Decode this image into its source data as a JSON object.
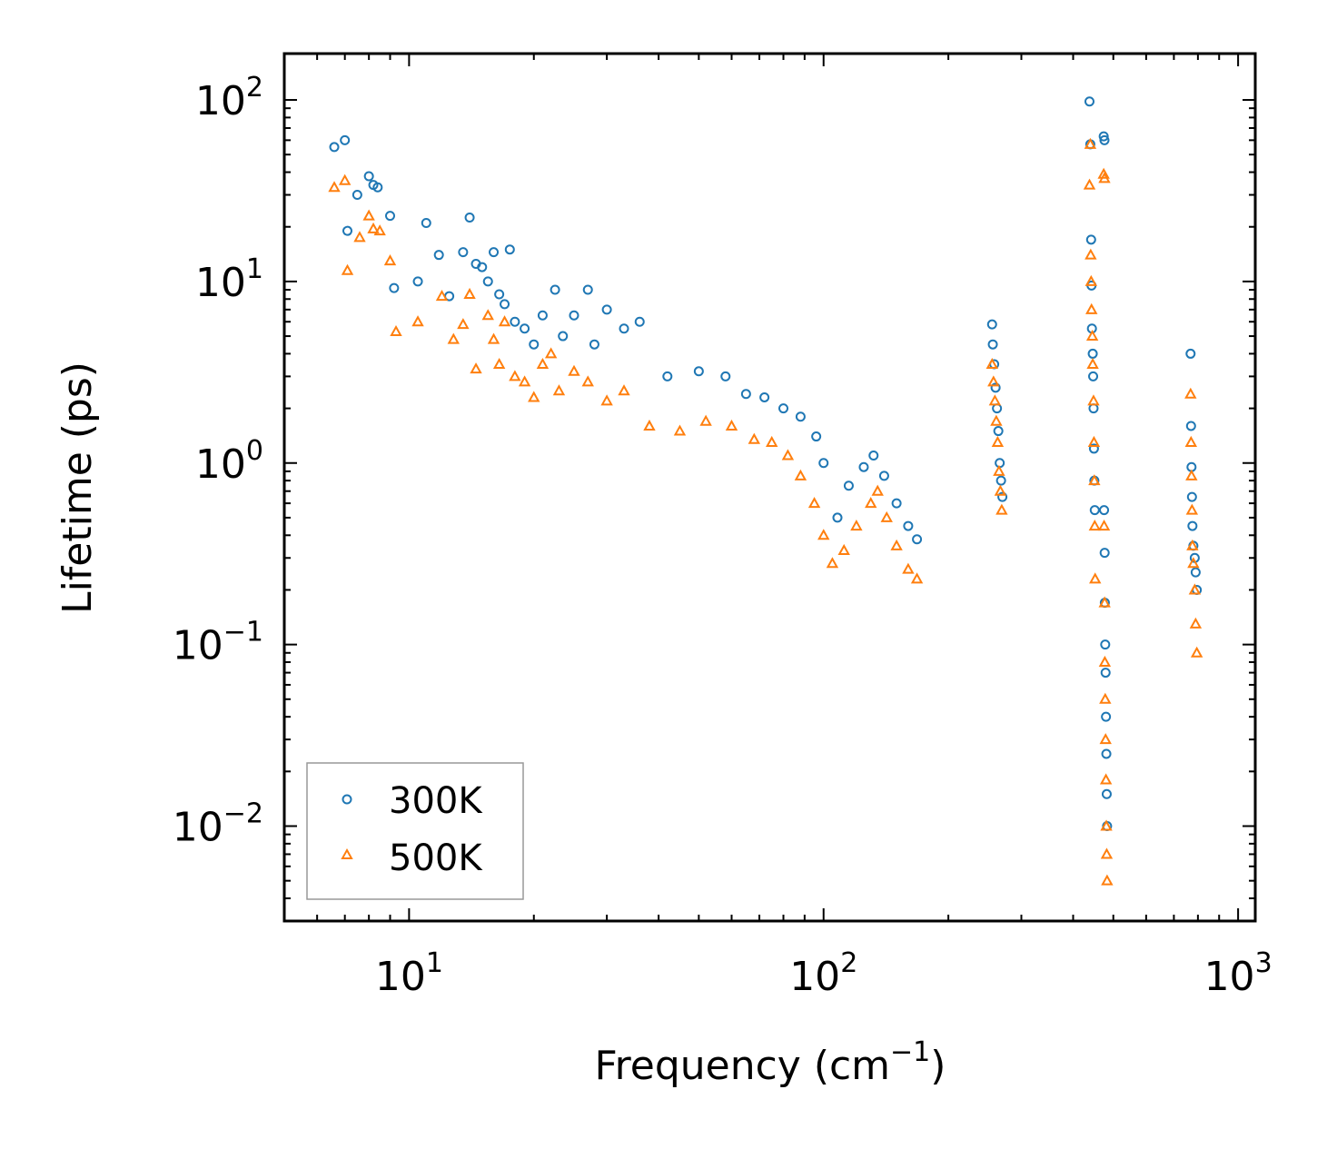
{
  "chart_data": {
    "type": "scatter",
    "title": "",
    "xlabel": "Frequency (cm",
    "xlabel_sup": "−1",
    "xlabel_close": ")",
    "ylabel": "Lifetime (ps)",
    "xscale": "log",
    "yscale": "log",
    "xlim": [
      5,
      1100
    ],
    "ylim": [
      0.003,
      180
    ],
    "x_ticks": [
      {
        "value": 10,
        "base": "10",
        "exp": "1"
      },
      {
        "value": 100,
        "base": "10",
        "exp": "2"
      },
      {
        "value": 1000,
        "base": "10",
        "exp": "3"
      }
    ],
    "y_ticks": [
      {
        "value": 100,
        "base": "10",
        "exp": "2"
      },
      {
        "value": 10,
        "base": "10",
        "exp": "1"
      },
      {
        "value": 1,
        "base": "10",
        "exp": "0"
      },
      {
        "value": 0.1,
        "base": "10",
        "exp": "−1"
      },
      {
        "value": 0.01,
        "base": "10",
        "exp": "−2"
      }
    ],
    "legend_position": "lower-left",
    "series": [
      {
        "name": "300K",
        "marker": "circle",
        "color": "#1f77b4",
        "points": [
          [
            6.6,
            55
          ],
          [
            7.0,
            60
          ],
          [
            7.1,
            19
          ],
          [
            7.5,
            30
          ],
          [
            8.0,
            38
          ],
          [
            8.2,
            34
          ],
          [
            8.4,
            33
          ],
          [
            9.0,
            23
          ],
          [
            9.2,
            9.2
          ],
          [
            10.5,
            10
          ],
          [
            11.0,
            21
          ],
          [
            11.8,
            14
          ],
          [
            12.5,
            8.3
          ],
          [
            13.5,
            14.5
          ],
          [
            14.0,
            22.5
          ],
          [
            14.5,
            12.5
          ],
          [
            15.0,
            12
          ],
          [
            15.5,
            10
          ],
          [
            16.0,
            14.5
          ],
          [
            16.5,
            8.5
          ],
          [
            17.0,
            7.5
          ],
          [
            17.5,
            15
          ],
          [
            18.0,
            6
          ],
          [
            19.0,
            5.5
          ],
          [
            20.0,
            4.5
          ],
          [
            21.0,
            6.5
          ],
          [
            22.5,
            9
          ],
          [
            23.5,
            5
          ],
          [
            25.0,
            6.5
          ],
          [
            27.0,
            9
          ],
          [
            28.0,
            4.5
          ],
          [
            30.0,
            7
          ],
          [
            33.0,
            5.5
          ],
          [
            36.0,
            6
          ],
          [
            42.0,
            3
          ],
          [
            50.0,
            3.2
          ],
          [
            58.0,
            3
          ],
          [
            65.0,
            2.4
          ],
          [
            72.0,
            2.3
          ],
          [
            80.0,
            2.0
          ],
          [
            88.0,
            1.8
          ],
          [
            96.0,
            1.4
          ],
          [
            100.0,
            1.0
          ],
          [
            108.0,
            0.5
          ],
          [
            115.0,
            0.75
          ],
          [
            125.0,
            0.95
          ],
          [
            132.0,
            1.1
          ],
          [
            140.0,
            0.85
          ],
          [
            150.0,
            0.6
          ],
          [
            160.0,
            0.45
          ],
          [
            168.0,
            0.38
          ],
          [
            255.0,
            5.8
          ],
          [
            256.0,
            4.5
          ],
          [
            258.0,
            3.5
          ],
          [
            260.0,
            2.6
          ],
          [
            262.0,
            2.0
          ],
          [
            264.0,
            1.5
          ],
          [
            266.0,
            1.0
          ],
          [
            268.0,
            0.8
          ],
          [
            270.0,
            0.65
          ],
          [
            438.0,
            98
          ],
          [
            440.0,
            57
          ],
          [
            442.0,
            17
          ],
          [
            443.0,
            9.5
          ],
          [
            444.0,
            5.5
          ],
          [
            446.0,
            4
          ],
          [
            447.0,
            3
          ],
          [
            448.0,
            2
          ],
          [
            449.0,
            1.2
          ],
          [
            450.0,
            0.8
          ],
          [
            451.0,
            0.55
          ],
          [
            474.0,
            63
          ],
          [
            476.0,
            60
          ],
          [
            475.0,
            0.55
          ],
          [
            476.5,
            0.32
          ],
          [
            477.0,
            0.17
          ],
          [
            478.0,
            0.1
          ],
          [
            479.0,
            0.07
          ],
          [
            480.0,
            0.04
          ],
          [
            481.0,
            0.025
          ],
          [
            482.0,
            0.015
          ],
          [
            483.0,
            0.01
          ],
          [
            768.0,
            4.0
          ],
          [
            770.0,
            1.6
          ],
          [
            772.0,
            0.95
          ],
          [
            774.0,
            0.65
          ],
          [
            776.0,
            0.45
          ],
          [
            780.0,
            0.35
          ],
          [
            786.0,
            0.3
          ],
          [
            790.0,
            0.25
          ],
          [
            795.0,
            0.2
          ]
        ]
      },
      {
        "name": "500K",
        "marker": "triangle",
        "color": "#ff7f0e",
        "points": [
          [
            6.6,
            33
          ],
          [
            7.0,
            36
          ],
          [
            7.1,
            11.5
          ],
          [
            7.6,
            17.5
          ],
          [
            8.0,
            23
          ],
          [
            8.2,
            19.5
          ],
          [
            8.5,
            19
          ],
          [
            9.0,
            13
          ],
          [
            9.3,
            5.3
          ],
          [
            10.5,
            6
          ],
          [
            12.0,
            8.3
          ],
          [
            12.8,
            4.8
          ],
          [
            13.5,
            5.8
          ],
          [
            14.0,
            8.5
          ],
          [
            14.5,
            3.3
          ],
          [
            15.5,
            6.5
          ],
          [
            16.0,
            4.8
          ],
          [
            16.5,
            3.5
          ],
          [
            17.0,
            6
          ],
          [
            18.0,
            3
          ],
          [
            19.0,
            2.8
          ],
          [
            20.0,
            2.3
          ],
          [
            21.0,
            3.5
          ],
          [
            22.0,
            4
          ],
          [
            23.0,
            2.5
          ],
          [
            25.0,
            3.2
          ],
          [
            27.0,
            2.8
          ],
          [
            30.0,
            2.2
          ],
          [
            33.0,
            2.5
          ],
          [
            38.0,
            1.6
          ],
          [
            45.0,
            1.5
          ],
          [
            52.0,
            1.7
          ],
          [
            60.0,
            1.6
          ],
          [
            68.0,
            1.35
          ],
          [
            75.0,
            1.3
          ],
          [
            82.0,
            1.1
          ],
          [
            88.0,
            0.85
          ],
          [
            95.0,
            0.6
          ],
          [
            100.0,
            0.4
          ],
          [
            105.0,
            0.28
          ],
          [
            112.0,
            0.33
          ],
          [
            120.0,
            0.45
          ],
          [
            130.0,
            0.6
          ],
          [
            135.0,
            0.7
          ],
          [
            142.0,
            0.5
          ],
          [
            150.0,
            0.35
          ],
          [
            160.0,
            0.26
          ],
          [
            168.0,
            0.23
          ],
          [
            255.0,
            3.5
          ],
          [
            257.0,
            2.8
          ],
          [
            259.0,
            2.2
          ],
          [
            261.0,
            1.7
          ],
          [
            263.0,
            1.3
          ],
          [
            265.0,
            0.9
          ],
          [
            267.0,
            0.7
          ],
          [
            269.0,
            0.55
          ],
          [
            438.0,
            34
          ],
          [
            440.0,
            57
          ],
          [
            441.0,
            14
          ],
          [
            442.0,
            10
          ],
          [
            443.0,
            7
          ],
          [
            445.0,
            5
          ],
          [
            446.0,
            3.5
          ],
          [
            448.0,
            2.2
          ],
          [
            449.0,
            1.3
          ],
          [
            450.0,
            0.8
          ],
          [
            451.0,
            0.45
          ],
          [
            452.0,
            0.23
          ],
          [
            474.0,
            39
          ],
          [
            476.0,
            37
          ],
          [
            475.0,
            0.45
          ],
          [
            476.5,
            0.17
          ],
          [
            477.0,
            0.08
          ],
          [
            478.0,
            0.05
          ],
          [
            479.0,
            0.03
          ],
          [
            480.0,
            0.018
          ],
          [
            481.0,
            0.01
          ],
          [
            482.0,
            0.007
          ],
          [
            483.0,
            0.005
          ],
          [
            768.0,
            2.4
          ],
          [
            770.0,
            1.3
          ],
          [
            772.0,
            0.85
          ],
          [
            774.0,
            0.55
          ],
          [
            776.0,
            0.35
          ],
          [
            780.0,
            0.28
          ],
          [
            786.0,
            0.2
          ],
          [
            790.0,
            0.13
          ],
          [
            795.0,
            0.09
          ]
        ]
      }
    ]
  }
}
